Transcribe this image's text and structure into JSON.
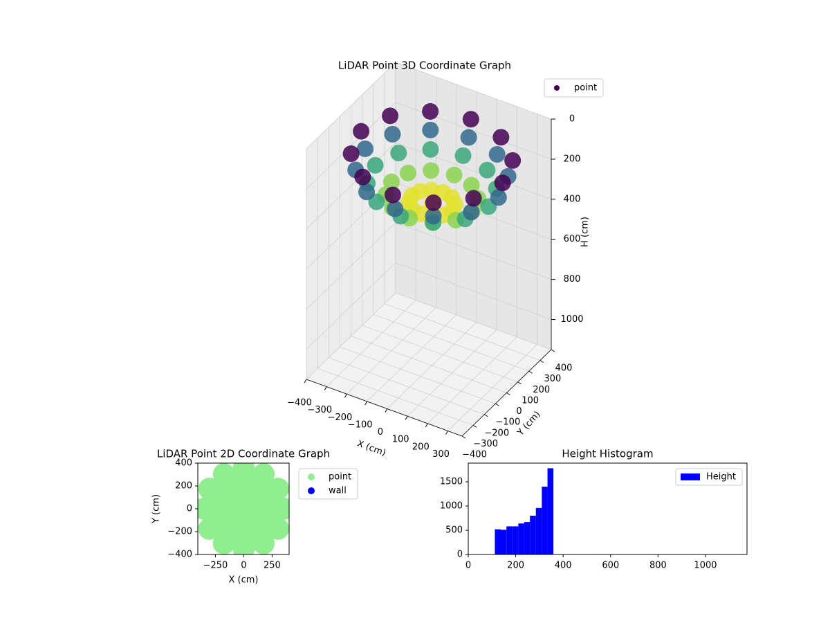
{
  "chart_data": [
    {
      "type": "scatter3d",
      "title": "LiDAR Point 3D Coordinate Graph",
      "xlabel": "X (cm)",
      "ylabel": "Y (cm)",
      "zlabel": "H (cm)",
      "legend": "point",
      "legend_color": "#440154",
      "colormap": [
        "#440154",
        "#3b528b",
        "#21918c",
        "#5ec962",
        "#fde725"
      ],
      "x": [
        0,
        100,
        87,
        50,
        0,
        -50,
        -87,
        -100,
        -87,
        -50,
        0,
        50,
        87,
        200,
        173,
        100,
        0,
        -100,
        -173,
        -200,
        -173,
        -100,
        0,
        100,
        173,
        280,
        242,
        140,
        0,
        -140,
        -242,
        -280,
        -242,
        -140,
        0,
        140,
        242,
        330,
        286,
        165,
        0,
        -165,
        -286,
        -330,
        -286,
        -165,
        0,
        165,
        286,
        350,
        303,
        175,
        0,
        -175,
        -303,
        -350,
        -303,
        -175,
        0,
        175,
        303
      ],
      "y": [
        0,
        0,
        50,
        87,
        100,
        87,
        50,
        0,
        -50,
        -87,
        -100,
        -87,
        -50,
        0,
        100,
        173,
        200,
        173,
        100,
        0,
        -100,
        -173,
        -200,
        -173,
        -100,
        0,
        140,
        242,
        280,
        242,
        140,
        0,
        -140,
        -242,
        -280,
        -242,
        -140,
        0,
        165,
        286,
        330,
        286,
        165,
        0,
        -165,
        -286,
        -330,
        -286,
        -165,
        0,
        175,
        303,
        350,
        303,
        175,
        0,
        -175,
        -303,
        -350,
        -303,
        -175
      ],
      "z": [
        350,
        340,
        340,
        340,
        340,
        340,
        340,
        340,
        340,
        340,
        340,
        340,
        340,
        307,
        307,
        307,
        307,
        307,
        307,
        307,
        307,
        307,
        307,
        307,
        307,
        254,
        254,
        254,
        254,
        254,
        254,
        254,
        254,
        254,
        254,
        254,
        254,
        190,
        190,
        190,
        190,
        190,
        190,
        190,
        190,
        190,
        190,
        190,
        190,
        110,
        110,
        110,
        110,
        110,
        110,
        110,
        110,
        110,
        110,
        110,
        110
      ],
      "xlim": [
        -400,
        370
      ],
      "ylim": [
        -400,
        400
      ],
      "zlim": [
        0,
        1150
      ],
      "z_inverted": true,
      "xticks": [
        {
          "value": -400,
          "label": "−400"
        },
        {
          "value": -300,
          "label": "−300"
        },
        {
          "value": -200,
          "label": "−200"
        },
        {
          "value": -100,
          "label": "−100"
        },
        0,
        100,
        200,
        300
      ],
      "yticks": [
        {
          "value": -400,
          "label": "−400"
        },
        {
          "value": -300,
          "label": "−300"
        },
        {
          "value": -200,
          "label": "−200"
        },
        {
          "value": -100,
          "label": "−100"
        },
        0,
        100,
        200,
        300,
        400
      ],
      "zticks": [
        0,
        200,
        400,
        600,
        800,
        1000
      ],
      "grid": true
    },
    {
      "type": "scatter",
      "title": "LiDAR Point 2D Coordinate Graph",
      "xlabel": "X (cm)",
      "ylabel": "Y (cm)",
      "series": [
        {
          "name": "point",
          "color": "#90ee90",
          "x": [
            0,
            100,
            87,
            50,
            0,
            -50,
            -87,
            -100,
            -87,
            -50,
            0,
            50,
            87,
            200,
            173,
            100,
            0,
            -100,
            -173,
            -200,
            -173,
            -100,
            0,
            100,
            173,
            280,
            242,
            140,
            0,
            -140,
            -242,
            -280,
            -242,
            -140,
            0,
            140,
            242,
            330,
            286,
            165,
            0,
            -165,
            -286,
            -330,
            -286,
            -165,
            0,
            165,
            286,
            350,
            303,
            175,
            0,
            -175,
            -303,
            -350,
            -303,
            -175,
            0,
            175,
            303
          ],
          "y": [
            0,
            0,
            50,
            87,
            100,
            87,
            50,
            0,
            -50,
            -87,
            -100,
            -87,
            -50,
            0,
            100,
            173,
            200,
            173,
            100,
            0,
            -100,
            -173,
            -200,
            -173,
            -100,
            0,
            140,
            242,
            280,
            242,
            140,
            0,
            -140,
            -242,
            -280,
            -242,
            -140,
            0,
            165,
            286,
            330,
            286,
            165,
            0,
            -165,
            -286,
            -330,
            -286,
            -165,
            0,
            175,
            303,
            350,
            303,
            175,
            0,
            -175,
            -303,
            -350,
            -303,
            -175
          ]
        },
        {
          "name": "wall",
          "color": "#0000ff",
          "x": [],
          "y": []
        }
      ],
      "xlim": [
        -405,
        400
      ],
      "ylim": [
        -400,
        400
      ],
      "xticks": [
        {
          "value": -250,
          "label": "−250"
        },
        0,
        250
      ],
      "yticks": [
        {
          "value": -400,
          "label": "−400"
        },
        {
          "value": -200,
          "label": "−200"
        },
        0,
        200,
        400
      ],
      "legend": "outside right"
    },
    {
      "type": "histogram",
      "title": "Height Histogram",
      "name": "Height",
      "color": "#0000ff",
      "bins": [
        112,
        137,
        161,
        186,
        211,
        236,
        260,
        285,
        310,
        334,
        359
      ],
      "counts": [
        520,
        510,
        580,
        580,
        640,
        670,
        800,
        960,
        1400,
        1780
      ],
      "xlim": [
        0,
        1175
      ],
      "ylim": [
        0,
        1886
      ],
      "xticks": [
        0,
        200,
        400,
        600,
        800,
        1000
      ],
      "yticks": [
        0,
        500,
        1000,
        1500
      ],
      "legend": "upper right"
    }
  ]
}
